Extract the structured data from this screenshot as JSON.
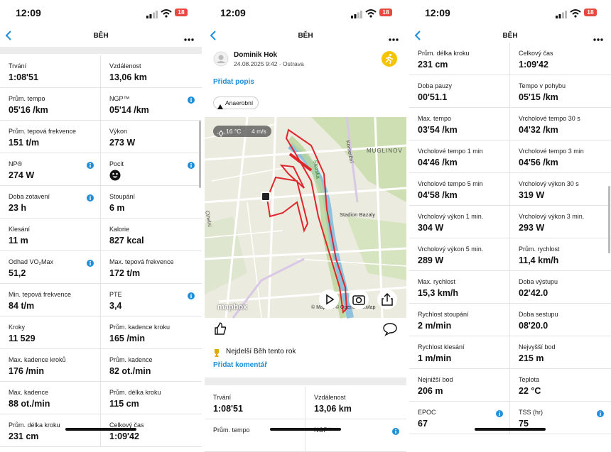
{
  "status_bar": {
    "time": "12:09",
    "battery": "18"
  },
  "screens": [
    {
      "title": "BĚH",
      "stats": [
        {
          "label": "Trvání",
          "value": "1:08'51"
        },
        {
          "label": "Vzdálenost",
          "value": "13,06 km"
        },
        {
          "label": "Prům. tempo",
          "value": "05'16 /km"
        },
        {
          "label": "NGP™",
          "value": "05'14 /km",
          "info": true
        },
        {
          "label": "Prům. tepová frekvence",
          "value": "151 t/m"
        },
        {
          "label": "Výkon",
          "value": "273 W"
        },
        {
          "label": "NP®",
          "value": "274 W",
          "info": true
        },
        {
          "label": "Pocit",
          "icon": "smiley",
          "info": true
        },
        {
          "label": "Doba zotavení",
          "value": "23 h",
          "info": true
        },
        {
          "label": "Stoupání",
          "value": "6 m"
        },
        {
          "label": "Klesání",
          "value": "11 m"
        },
        {
          "label": "Kalorie",
          "value": "827 kcal"
        },
        {
          "label": "Odhad VO₂Max",
          "value": "51,2",
          "info": true
        },
        {
          "label": "Max. tepová frekvence",
          "value": "172 t/m"
        },
        {
          "label": "Min. tepová frekvence",
          "value": "84 t/m"
        },
        {
          "label": "PTE",
          "value": "3,4",
          "info": true
        },
        {
          "label": "Kroky",
          "value": "11 529"
        },
        {
          "label": "Prům. kadence kroku",
          "value": "165 /min"
        },
        {
          "label": "Max. kadence kroků",
          "value": "176 /min"
        },
        {
          "label": "Prům. kadence",
          "value": "82 ot./min"
        },
        {
          "label": "Max. kadence",
          "value": "88 ot./min"
        },
        {
          "label": "Prům. délka kroku",
          "value": "115 cm"
        },
        {
          "label": "Prům. délka kroku",
          "value": "231 cm"
        },
        {
          "label": "Celkový čas",
          "value": "1:09'42"
        }
      ]
    },
    {
      "title": "BĚH",
      "post": {
        "author": "Dominik Hok",
        "date": "24.08.2025 9:42 · Ostrava",
        "add_description": "Přidat popis",
        "tag": "Anaerobní",
        "map": {
          "temperature": "16 °C",
          "wind": "4 m/s",
          "labels": [
            "MUGLINOV",
            "Komerční",
            "Stadion Bazaly",
            "Slezská",
            "Cihelní"
          ],
          "logo": "mapbox",
          "attribution": "© Mapbox © OpenStreetMap"
        },
        "achievement": "Nejdelší Běh tento rok",
        "add_comment": "Přidat komentář"
      },
      "stats": [
        {
          "label": "Trvání",
          "value": "1:08'51"
        },
        {
          "label": "Vzdálenost",
          "value": "13,06 km"
        },
        {
          "label": "Prům. tempo"
        },
        {
          "label": "NGP™",
          "info": true
        }
      ]
    },
    {
      "title": "BĚH",
      "stats": [
        {
          "label": "Prům. délka kroku",
          "value": "231 cm"
        },
        {
          "label": "Celkový čas",
          "value": "1:09'42"
        },
        {
          "label": "Doba pauzy",
          "value": "00'51.1"
        },
        {
          "label": "Tempo v pohybu",
          "value": "05'15 /km"
        },
        {
          "label": "Max. tempo",
          "value": "03'54 /km"
        },
        {
          "label": "Vrcholové tempo 30 s",
          "value": "04'32 /km"
        },
        {
          "label": "Vrcholové tempo 1 min",
          "value": "04'46 /km"
        },
        {
          "label": "Vrcholové tempo 3 min",
          "value": "04'56 /km"
        },
        {
          "label": "Vrcholové tempo 5 min",
          "value": "04'58 /km"
        },
        {
          "label": "Vrcholový výkon 30 s",
          "value": "319 W"
        },
        {
          "label": "Vrcholový výkon 1 min.",
          "value": "304 W"
        },
        {
          "label": "Vrcholový výkon 3 min.",
          "value": "293 W"
        },
        {
          "label": "Vrcholový výkon 5 min.",
          "value": "289 W"
        },
        {
          "label": "Prům. rychlost",
          "value": "11,4 km/h"
        },
        {
          "label": "Max. rychlost",
          "value": "15,3 km/h"
        },
        {
          "label": "Doba výstupu",
          "value": "02'42.0"
        },
        {
          "label": "Rychlost stoupání",
          "value": "2 m/min"
        },
        {
          "label": "Doba sestupu",
          "value": "08'20.0"
        },
        {
          "label": "Rychlost klesání",
          "value": "1 m/min"
        },
        {
          "label": "Nejvyšší bod",
          "value": "215 m"
        },
        {
          "label": "Nejnižší bod",
          "value": "206 m"
        },
        {
          "label": "Teplota",
          "value": "22 °C"
        },
        {
          "label": "EPOC",
          "value": "67",
          "info": true
        },
        {
          "label": "TSS (hr)",
          "value": "75",
          "info": true
        }
      ]
    }
  ]
}
